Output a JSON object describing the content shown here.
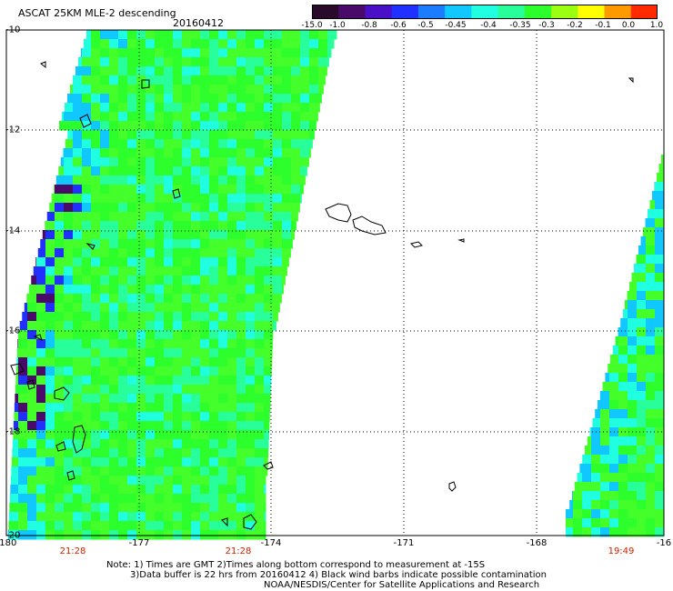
{
  "title": "ASCAT 25KM MLE-2 descending",
  "date": "20160412",
  "colorbar": {
    "labels": [
      "-15.0",
      "-1.0",
      "-0.8",
      "-0.6",
      "-0.5",
      "-0.45",
      "-0.4",
      "-0.35",
      "-0.3",
      "-0.2",
      "-0.1",
      "0.0",
      "1.0"
    ],
    "colors": [
      "#2a0a2a",
      "#4a0a6a",
      "#4a10c8",
      "#2030ff",
      "#1c7cff",
      "#10c8ff",
      "#20ffe0",
      "#28ff9a",
      "#2cff2c",
      "#9aff10",
      "#ffff00",
      "#ff9900",
      "#ff2a00"
    ]
  },
  "axes": {
    "lat_labels": [
      "-10",
      "-12",
      "-14",
      "-16",
      "-18",
      "-20"
    ],
    "lon_labels": [
      "-180",
      "-177",
      "-174",
      "-171",
      "-168",
      "-16"
    ]
  },
  "time_labels": [
    "21:28",
    "21:28",
    "19:49"
  ],
  "notes": {
    "line1": "Note: 1) Times are GMT 2)Times along bottom correspond to measurement at -15S",
    "line2": "3)Data buffer is 22 hrs from 20160412 4) Black wind barbs indicate possible contamination",
    "line3": "NOAA/NESDIS/Center for Satellite Applications and Research"
  },
  "map_style": {
    "swath_colors": [
      "#2cff2c",
      "#44ff2a",
      "#28ff9a",
      "#20ffe0",
      "#10c8ff",
      "#2030ff",
      "#4a0a6a"
    ],
    "grid": true
  }
}
